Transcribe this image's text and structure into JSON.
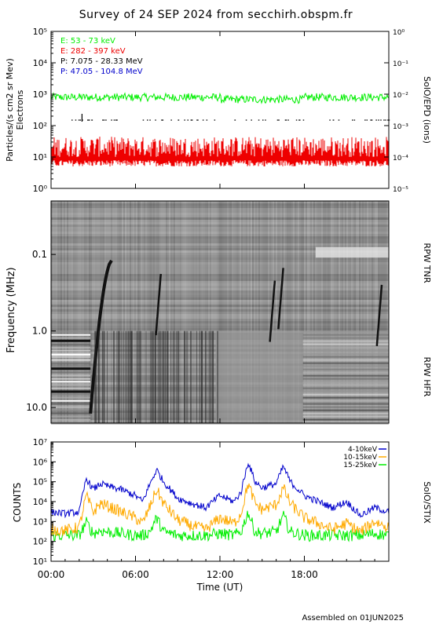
{
  "title": "Survey of 24 SEP 2024 from secchirh.obspm.fr",
  "footer": "Assembled on 01JUN2025",
  "colors": {
    "green": "#00ee00",
    "red": "#ee0000",
    "black": "#000000",
    "blue": "#0000cc",
    "orange": "#ffaa00"
  },
  "chart_data": [
    {
      "type": "line",
      "panel": "SolO/EPD",
      "ylabel": "Particles/(s cm2 sr Mev)",
      "ylabel2": "Electrons",
      "y2label": "SolO/EPD (ions)",
      "yscale": "log",
      "ylim": [
        1,
        100000
      ],
      "y2lim": [
        1e-05,
        1
      ],
      "yticks": [
        "10⁰",
        "10¹",
        "10²",
        "10³",
        "10⁴",
        "10⁵"
      ],
      "y2ticks": [
        "10⁻⁵",
        "10⁻⁴",
        "10⁻³",
        "10⁻²",
        "10⁻¹",
        "10⁰"
      ],
      "xlim_hours": [
        0,
        24
      ],
      "legend": [
        {
          "label": "E: 53 - 73 keV",
          "color": "#00ee00"
        },
        {
          "label": "E: 282 - 397 keV",
          "color": "#ee0000"
        },
        {
          "label": "P: 7.075 - 28.33 MeV",
          "color": "#000000"
        },
        {
          "label": "P: 47.05 - 104.8 MeV",
          "color": "#0000cc"
        }
      ],
      "series": [
        {
          "name": "E: 53 - 73 keV",
          "approx_level": 800
        },
        {
          "name": "E: 282 - 397 keV",
          "approx_level": 10,
          "range": [
            5,
            60
          ]
        },
        {
          "name": "P: 7.075 - 28.33 MeV",
          "approx_level": 0.0015,
          "axis": "right",
          "sparse": true
        }
      ]
    },
    {
      "type": "heatmap",
      "panel": "RPW",
      "ylabel": "Frequency (MHz)",
      "yscale": "log",
      "ylim": [
        0.02,
        16
      ],
      "yticks": [
        "0.1",
        "1.0",
        "10.0"
      ],
      "right_labels": [
        "RPW TNR",
        "RPW HFR"
      ],
      "xlim_hours": [
        0,
        24
      ]
    },
    {
      "type": "line",
      "panel": "SolO/STIX",
      "ylabel": "COUNTS",
      "y2label": "SolO/STIX",
      "yscale": "log",
      "ylim": [
        10,
        10000000
      ],
      "yticks": [
        "10¹",
        "10²",
        "10³",
        "10⁴",
        "10⁵",
        "10⁶",
        "10⁷"
      ],
      "xlabel": "Time (UT)",
      "xticks": [
        "00:00",
        "06:00",
        "12:00",
        "18:00"
      ],
      "xlim_hours": [
        0,
        24
      ],
      "legend": [
        {
          "label": "4-10keV",
          "color": "#0000cc"
        },
        {
          "label": "10-15keV",
          "color": "#ffaa00"
        },
        {
          "label": "15-25keV",
          "color": "#00ee00"
        }
      ],
      "series": [
        {
          "name": "4-10keV",
          "x": [
            0,
            1,
            2,
            2.5,
            3,
            3.5,
            4,
            5,
            6,
            6.5,
            7,
            7.5,
            8,
            9,
            10,
            11,
            12,
            13,
            13.5,
            14,
            14.5,
            15,
            16,
            16.5,
            17,
            18,
            19,
            20,
            21,
            22,
            23,
            24
          ],
          "y": [
            3000,
            2500,
            3000,
            150000,
            40000,
            80000,
            60000,
            40000,
            20000,
            10000,
            70000,
            400000,
            100000,
            15000,
            8000,
            5000,
            20000,
            10000,
            30000,
            1000000,
            100000,
            50000,
            80000,
            600000,
            100000,
            20000,
            10000,
            5000,
            10000,
            2000,
            5000,
            3000
          ]
        },
        {
          "name": "10-15keV",
          "x": [
            0,
            1,
            2,
            2.5,
            3,
            3.5,
            4,
            5,
            6,
            6.5,
            7,
            7.5,
            8,
            9,
            10,
            11,
            12,
            13,
            13.5,
            14,
            14.5,
            15,
            16,
            16.5,
            17,
            18,
            19,
            20,
            21,
            22,
            23,
            24
          ],
          "y": [
            400,
            350,
            500,
            20000,
            3000,
            8000,
            6000,
            3000,
            1500,
            800,
            5000,
            40000,
            8000,
            1200,
            600,
            400,
            1500,
            800,
            2500,
            80000,
            8000,
            4000,
            7000,
            50000,
            8000,
            1500,
            800,
            400,
            800,
            300,
            1000,
            500
          ]
        },
        {
          "name": "15-25keV",
          "x": [
            0,
            1,
            2,
            2.5,
            3,
            3.5,
            4,
            5,
            6,
            6.5,
            7,
            7.5,
            8,
            9,
            10,
            11,
            12,
            13,
            13.5,
            14,
            14.5,
            15,
            16,
            16.5,
            17,
            18,
            19,
            20,
            21,
            22,
            23,
            24
          ],
          "y": [
            200,
            200,
            200,
            900,
            250,
            350,
            300,
            250,
            200,
            200,
            300,
            1500,
            300,
            200,
            200,
            200,
            250,
            200,
            300,
            3000,
            300,
            250,
            300,
            2000,
            300,
            200,
            200,
            200,
            200,
            200,
            250,
            200
          ]
        }
      ]
    }
  ]
}
